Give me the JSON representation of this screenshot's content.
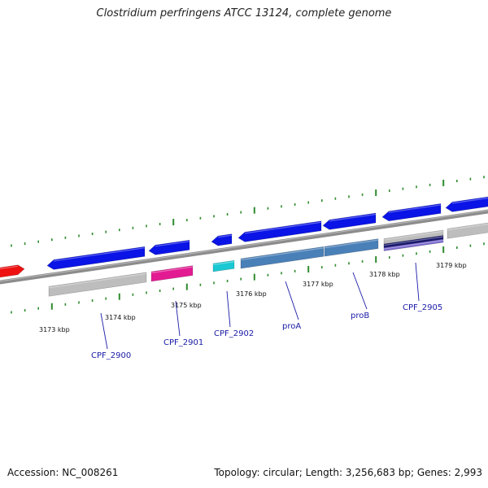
{
  "title": "Clostridium perfringens ATCC 13124, complete genome",
  "footer": {
    "accession": "Accession: NC_008261",
    "summary": "Topology: circular; Length: 3,256,683 bp; Genes: 2,993"
  },
  "colors": {
    "backbone": "#8c8c8c",
    "cds_blue": "#0a14e6",
    "cds_red": "#ee1111",
    "cds_gray": "#bdbdbd",
    "cds_pink": "#e21b92",
    "cds_cyan": "#19c8d2",
    "cds_steel": "#4a80b8",
    "cds_navy": "#1a1a6e",
    "cds_purple": "#7a6ad0",
    "tick": "#2e8b2e",
    "label": "#1a1aa6"
  },
  "ticks": [
    "3173 kbp",
    "3174 kbp",
    "3175 kbp",
    "3176 kbp",
    "3177 kbp",
    "3178 kbp",
    "3179 kbp"
  ],
  "gene_labels": [
    "CPF_2900",
    "CPF_2901",
    "CPF_2902",
    "proA",
    "proB",
    "CPF_2905"
  ]
}
